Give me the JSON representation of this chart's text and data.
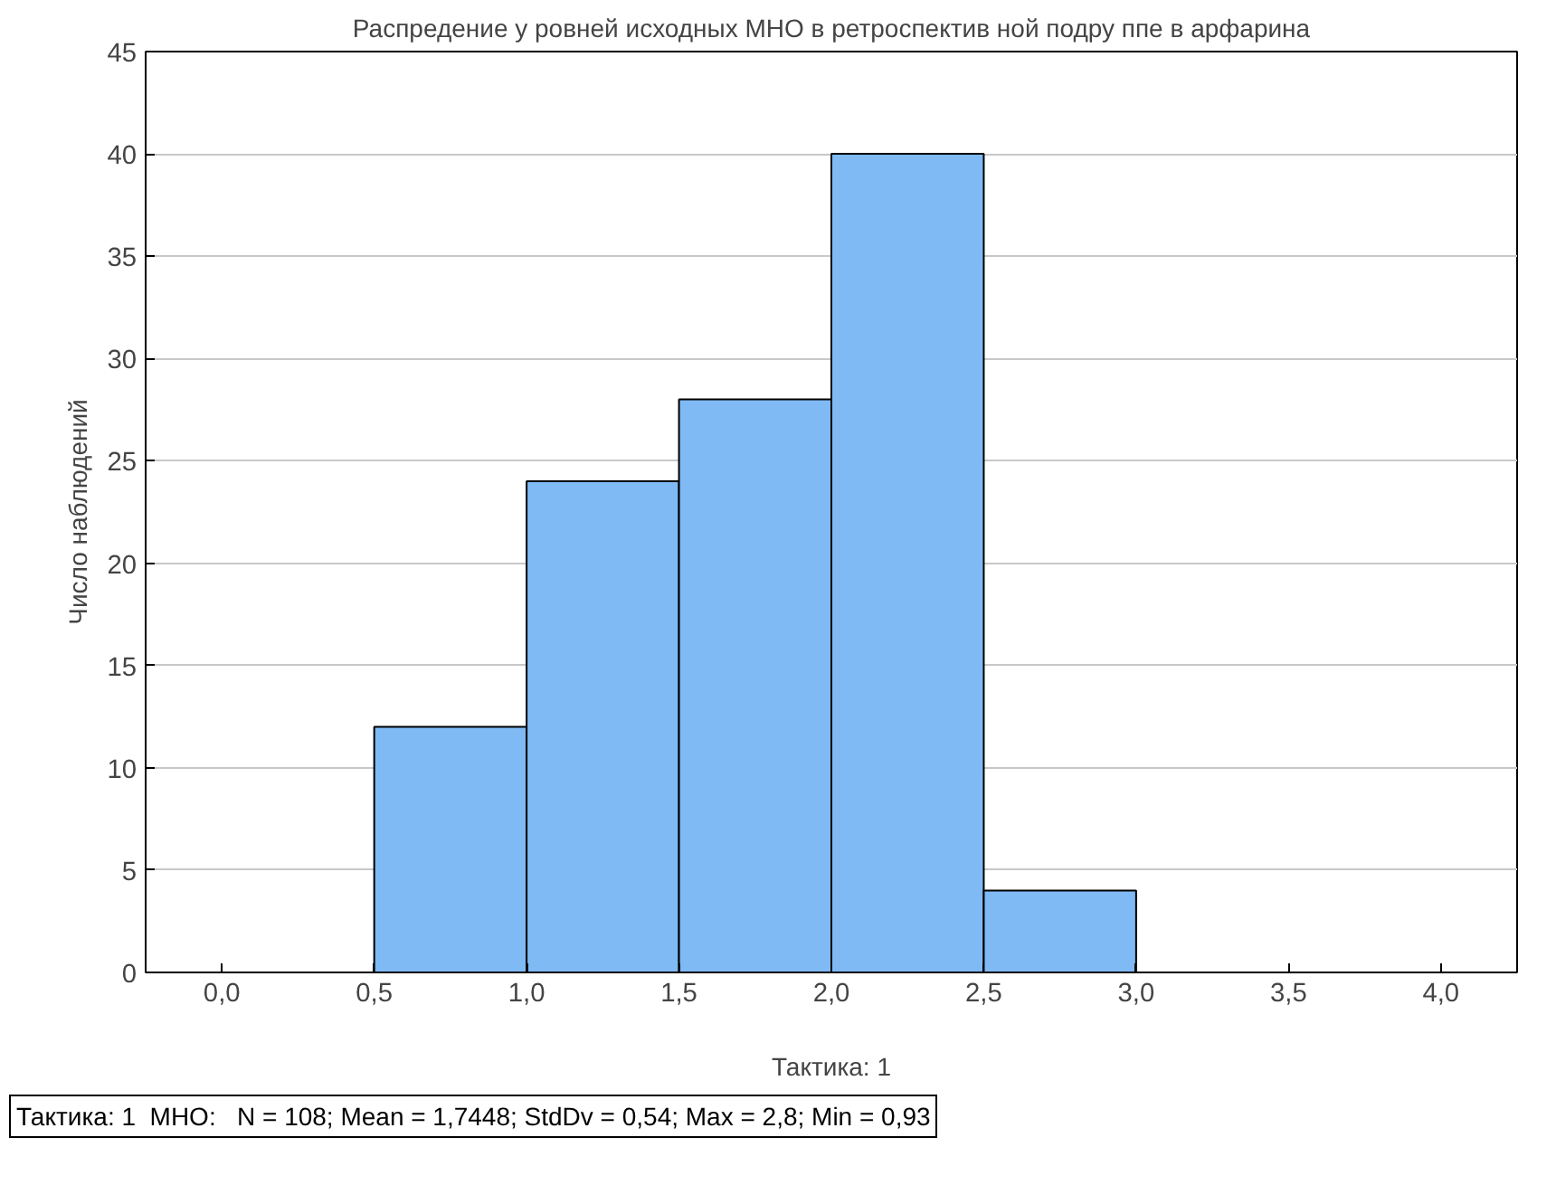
{
  "chart_data": {
    "type": "histogram",
    "title": "Распредение у ровней исходных МНО в ретроспектив ной подру ппе в арфарина",
    "xlabel": "Тактика: 1",
    "ylabel": "Число наблюдений",
    "bins": [
      0.5,
      1.0,
      1.5,
      2.0,
      2.5,
      3.0
    ],
    "values": [
      12,
      24,
      28,
      40,
      4
    ],
    "color": "#7fbaf5",
    "xlim": [
      -0.25,
      4.25
    ],
    "ylim": [
      0,
      45
    ],
    "xticks": [
      {
        "value": 0,
        "label": "0,0"
      },
      {
        "value": 0.5,
        "label": "0,5"
      },
      {
        "value": 1.0,
        "label": "1,0"
      },
      {
        "value": 1.5,
        "label": "1,5"
      },
      {
        "value": 2.0,
        "label": "2,0"
      },
      {
        "value": 2.5,
        "label": "2,5"
      },
      {
        "value": 3.0,
        "label": "3,0"
      },
      {
        "value": 3.5,
        "label": "3,5"
      },
      {
        "value": 4.0,
        "label": "4,0"
      }
    ],
    "yticks": [
      0,
      5,
      10,
      15,
      20,
      25,
      30,
      35,
      40,
      45
    ],
    "grid": "y",
    "annotations": [
      "Тактика: 1  МНО:   N = 108; Mean = 1,7448; StdDv = 0,54; Max = 2,8; Min = 0,93"
    ]
  }
}
